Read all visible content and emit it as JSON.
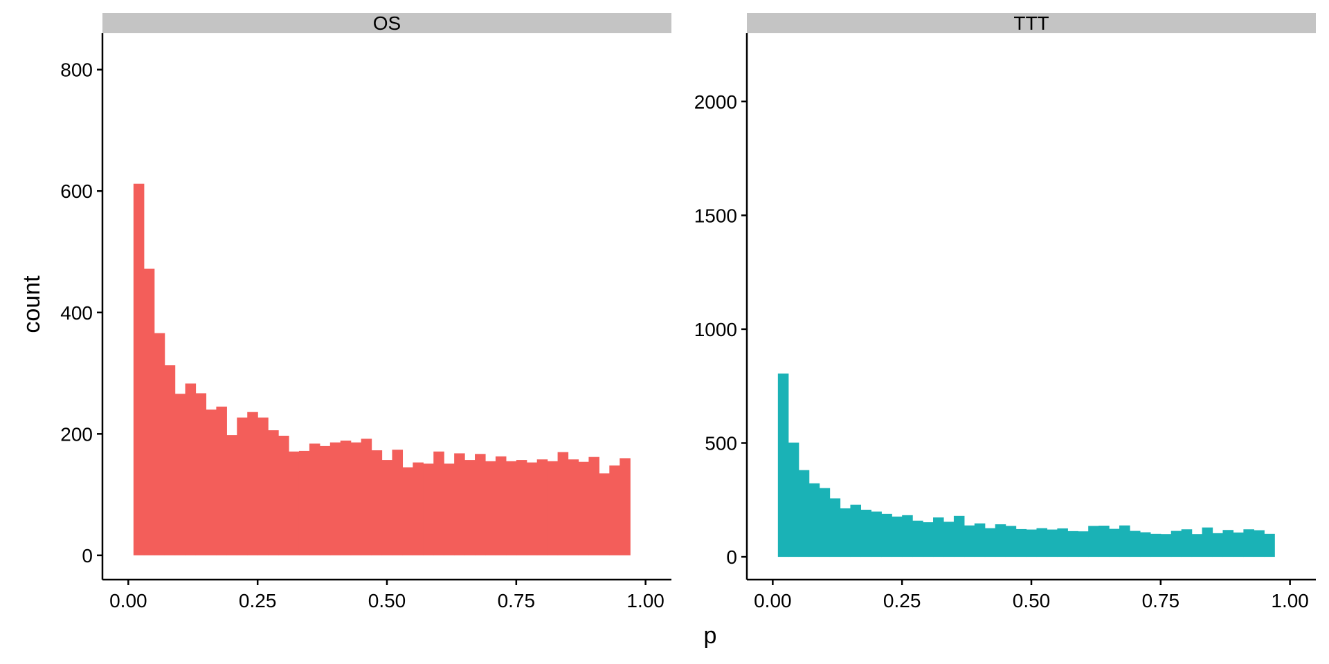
{
  "chart_data": {
    "type": "bar",
    "xlabel": "p",
    "ylabel": "count",
    "bin_width": 0.02,
    "bin_start": 0.01,
    "grid": false,
    "legend": "none",
    "xlim": [
      -0.05,
      1.05
    ],
    "x_ticks": [
      0,
      0.25,
      0.5,
      0.75,
      1
    ],
    "x_tick_labels": [
      "0.00",
      "0.25",
      "0.50",
      "0.75",
      "1.00"
    ],
    "panels": [
      {
        "strip": "OS",
        "color": "#F35E5A",
        "ylim": [
          -40,
          860
        ],
        "y_ticks": [
          0,
          200,
          400,
          600,
          800
        ],
        "y_tick_labels": [
          "0",
          "200",
          "400",
          "600",
          "800"
        ],
        "values": [
          612,
          472,
          366,
          313,
          266,
          283,
          267,
          240,
          245,
          198,
          227,
          236,
          227,
          206,
          197,
          171,
          172,
          184,
          180,
          186,
          189,
          186,
          192,
          173,
          157,
          174,
          145,
          153,
          151,
          171,
          151,
          168,
          157,
          167,
          155,
          163,
          155,
          157,
          153,
          158,
          155,
          170,
          158,
          154,
          162,
          135,
          148,
          160
        ]
      },
      {
        "strip": "TTT",
        "color": "#1AB2B6",
        "ylim": [
          -100,
          2300
        ],
        "y_ticks": [
          0,
          500,
          1000,
          1500,
          2000
        ],
        "y_tick_labels": [
          "0",
          "500",
          "1000",
          "1500",
          "2000"
        ],
        "values": [
          805,
          502,
          381,
          323,
          302,
          257,
          213,
          229,
          207,
          199,
          189,
          177,
          183,
          159,
          152,
          173,
          154,
          180,
          138,
          147,
          126,
          143,
          136,
          122,
          120,
          126,
          120,
          125,
          113,
          112,
          136,
          137,
          123,
          138,
          114,
          108,
          101,
          100,
          114,
          121,
          100,
          129,
          104,
          118,
          107,
          121,
          117,
          101
        ]
      }
    ]
  }
}
